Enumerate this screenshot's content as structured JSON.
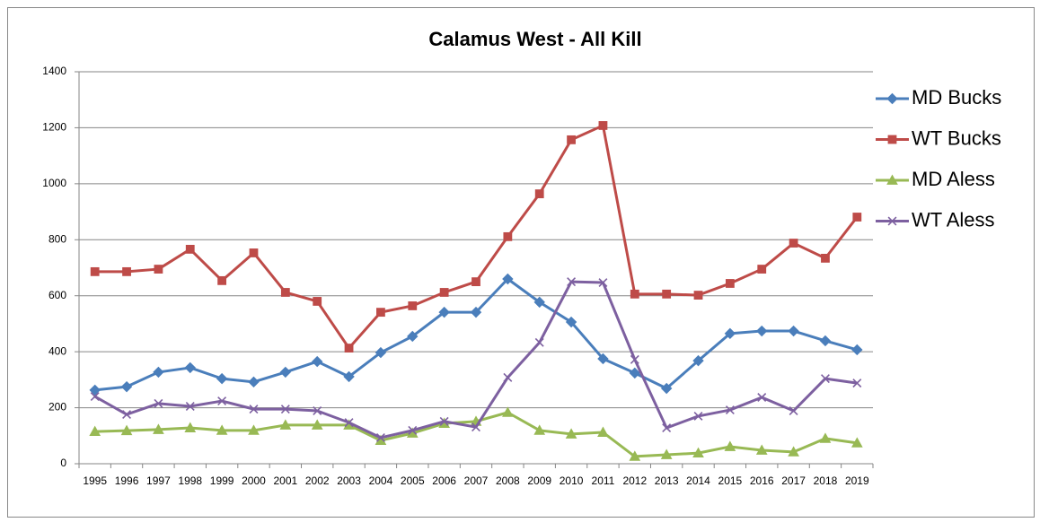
{
  "chart_data": {
    "type": "line",
    "title": "Calamus West - All Kill",
    "categories": [
      "1995",
      "1996",
      "1997",
      "1998",
      "1999",
      "2000",
      "2001",
      "2002",
      "2003",
      "2004",
      "2005",
      "2006",
      "2007",
      "2008",
      "2009",
      "2010",
      "2011",
      "2012",
      "2013",
      "2014",
      "2015",
      "2016",
      "2017",
      "2018",
      "2019"
    ],
    "series": [
      {
        "name": "MD Bucks",
        "color": "#4a7ebb",
        "marker": "diamond",
        "values": [
          263,
          275,
          327,
          343,
          304,
          292,
          327,
          365,
          311,
          397,
          455,
          541,
          541,
          660,
          577,
          506,
          375,
          324,
          269,
          368,
          465,
          474,
          474,
          439,
          407
        ]
      },
      {
        "name": "WT Bucks",
        "color": "#be4b48",
        "marker": "square",
        "values": [
          686,
          686,
          695,
          766,
          654,
          753,
          612,
          580,
          413,
          541,
          564,
          612,
          650,
          811,
          964,
          1157,
          1208,
          606,
          606,
          602,
          644,
          695,
          788,
          734,
          881
        ]
      },
      {
        "name": "MD Aless",
        "color": "#98b954",
        "marker": "triangle",
        "values": [
          115,
          118,
          122,
          128,
          119,
          119,
          138,
          138,
          138,
          83,
          109,
          144,
          151,
          183,
          119,
          106,
          112,
          26,
          32,
          38,
          61,
          48,
          42,
          90,
          74
        ]
      },
      {
        "name": "WT Aless",
        "color": "#7d60a0",
        "marker": "x",
        "values": [
          240,
          176,
          215,
          205,
          224,
          195,
          195,
          189,
          147,
          93,
          119,
          151,
          131,
          308,
          433,
          650,
          647,
          372,
          128,
          170,
          192,
          237,
          189,
          304,
          288
        ]
      }
    ],
    "ylim": [
      0,
      1400
    ],
    "yticks": [
      0,
      200,
      400,
      600,
      800,
      1000,
      1200,
      1400
    ],
    "grid": true,
    "legend": "right"
  }
}
